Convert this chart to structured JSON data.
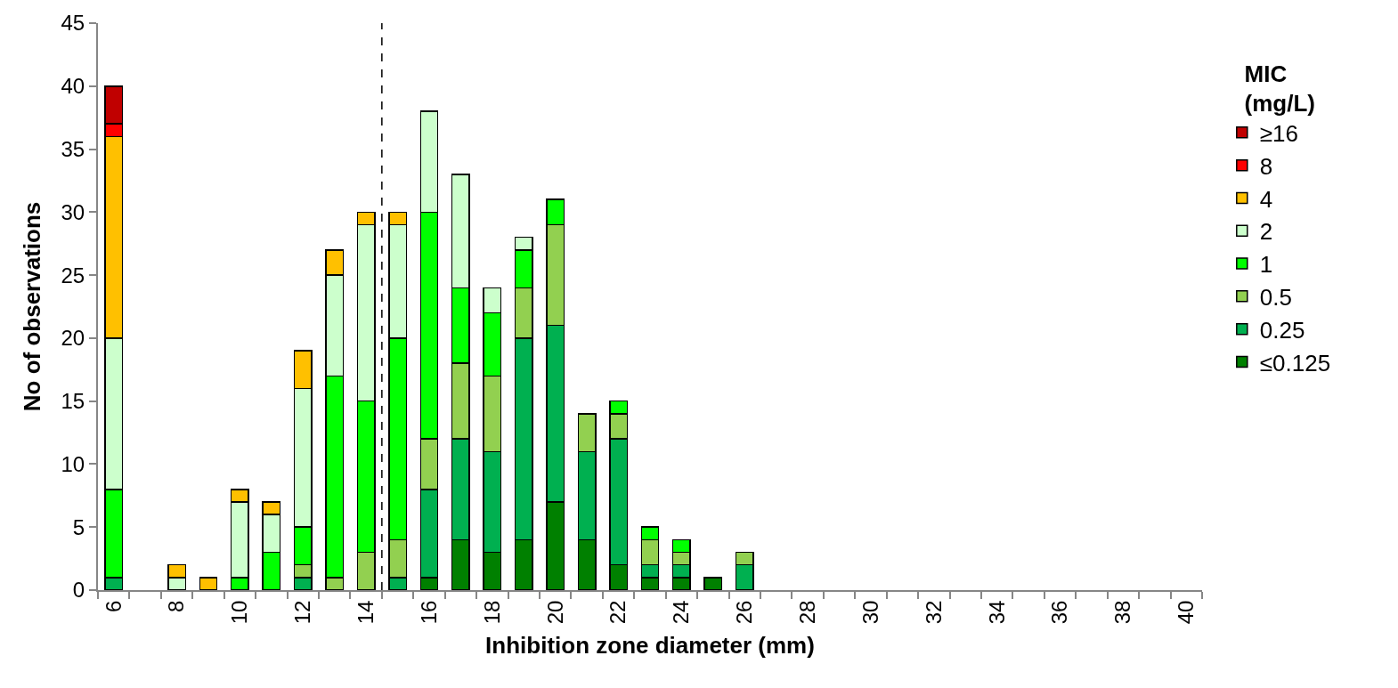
{
  "chart_data": {
    "type": "bar",
    "stacked": true,
    "xlabel": "Inhibition zone diameter (mm)",
    "ylabel": "No of observations",
    "legend_title": "MIC (mg/L)",
    "legend": "right",
    "x": [
      6,
      7,
      8,
      9,
      10,
      11,
      12,
      13,
      14,
      15,
      16,
      17,
      18,
      19,
      20,
      21,
      22,
      23,
      24,
      25,
      26,
      27,
      28,
      29,
      30,
      31,
      32,
      33,
      34,
      35,
      36,
      37,
      38,
      39,
      40
    ],
    "xlim": [
      5.5,
      40.5
    ],
    "xticks": [
      6,
      8,
      10,
      12,
      14,
      16,
      18,
      20,
      22,
      24,
      26,
      28,
      30,
      32,
      34,
      36,
      38,
      40
    ],
    "ylim": [
      0,
      45
    ],
    "yticks": [
      0,
      5,
      10,
      15,
      20,
      25,
      30,
      35,
      40,
      45
    ],
    "ref_lines": [
      {
        "axis": "x",
        "value": 14.5,
        "color": "#000000",
        "line_style": "dashed"
      }
    ],
    "series": [
      {
        "name": "≤0.125",
        "color": "#008000",
        "values": [
          0,
          0,
          0,
          0,
          0,
          0,
          0,
          0,
          0,
          0,
          1,
          4,
          3,
          4,
          7,
          4,
          2,
          1,
          1,
          1,
          0,
          0,
          0,
          0,
          0,
          0,
          0,
          0,
          0,
          0,
          0,
          0,
          0,
          0,
          0
        ]
      },
      {
        "name": "0.25",
        "color": "#00b050",
        "values": [
          1,
          0,
          0,
          0,
          0,
          0,
          1,
          0,
          0,
          1,
          7,
          8,
          8,
          16,
          14,
          7,
          10,
          1,
          1,
          0,
          2,
          0,
          0,
          0,
          0,
          0,
          0,
          0,
          0,
          0,
          0,
          0,
          0,
          0,
          0
        ]
      },
      {
        "name": "0.5",
        "color": "#92d050",
        "values": [
          0,
          0,
          0,
          0,
          0,
          0,
          1,
          1,
          3,
          3,
          4,
          6,
          6,
          4,
          8,
          3,
          2,
          2,
          1,
          0,
          1,
          0,
          0,
          0,
          0,
          0,
          0,
          0,
          0,
          0,
          0,
          0,
          0,
          0,
          0
        ]
      },
      {
        "name": "1",
        "color": "#00ff00",
        "values": [
          7,
          0,
          0,
          0,
          1,
          3,
          3,
          16,
          12,
          16,
          18,
          6,
          5,
          3,
          2,
          0,
          1,
          1,
          1,
          0,
          0,
          0,
          0,
          0,
          0,
          0,
          0,
          0,
          0,
          0,
          0,
          0,
          0,
          0,
          0
        ]
      },
      {
        "name": "2",
        "color": "#ccffcc",
        "values": [
          12,
          0,
          1,
          0,
          6,
          3,
          11,
          8,
          14,
          9,
          8,
          9,
          2,
          1,
          0,
          0,
          0,
          0,
          0,
          0,
          0,
          0,
          0,
          0,
          0,
          0,
          0,
          0,
          0,
          0,
          0,
          0,
          0,
          0,
          0
        ]
      },
      {
        "name": "4",
        "color": "#ffc000",
        "values": [
          16,
          0,
          1,
          1,
          1,
          1,
          3,
          2,
          1,
          1,
          0,
          0,
          0,
          0,
          0,
          0,
          0,
          0,
          0,
          0,
          0,
          0,
          0,
          0,
          0,
          0,
          0,
          0,
          0,
          0,
          0,
          0,
          0,
          0,
          0
        ]
      },
      {
        "name": "8",
        "color": "#ff0000",
        "values": [
          1,
          0,
          0,
          0,
          0,
          0,
          0,
          0,
          0,
          0,
          0,
          0,
          0,
          0,
          0,
          0,
          0,
          0,
          0,
          0,
          0,
          0,
          0,
          0,
          0,
          0,
          0,
          0,
          0,
          0,
          0,
          0,
          0,
          0,
          0
        ]
      },
      {
        "name": "≥16",
        "color": "#c00000",
        "values": [
          3,
          0,
          0,
          0,
          0,
          0,
          0,
          0,
          0,
          0,
          0,
          0,
          0,
          0,
          0,
          0,
          0,
          0,
          0,
          0,
          0,
          0,
          0,
          0,
          0,
          0,
          0,
          0,
          0,
          0,
          0,
          0,
          0,
          0,
          0
        ]
      }
    ]
  }
}
